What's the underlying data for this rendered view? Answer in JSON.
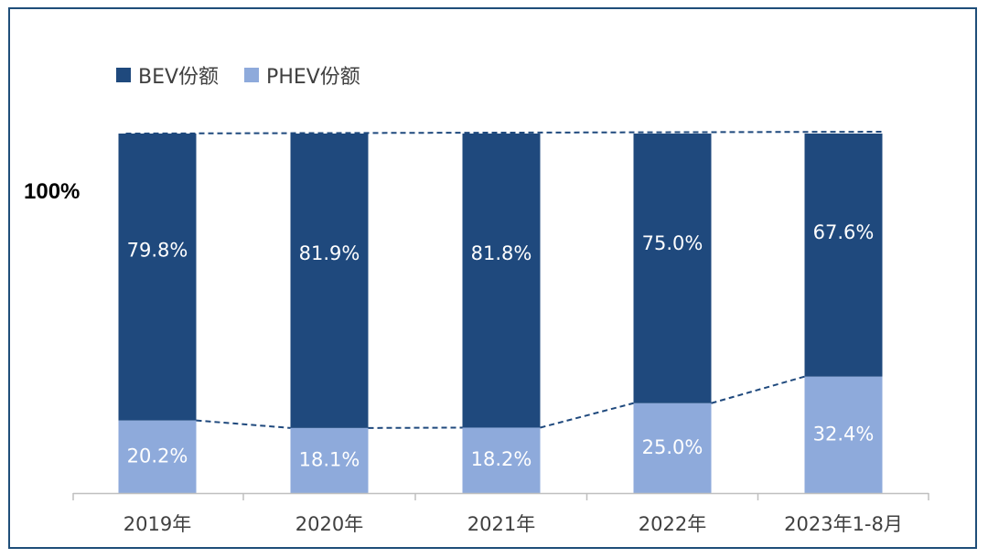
{
  "chart_data": {
    "type": "bar",
    "stacked": true,
    "percent": true,
    "categories": [
      "2019年",
      "2020年",
      "2021年",
      "2022年",
      "2023年1-8月"
    ],
    "series": [
      {
        "name": "BEV份额",
        "values": [
          79.8,
          81.9,
          81.8,
          75.0,
          67.6
        ],
        "labels": [
          "79.8%",
          "81.9%",
          "81.8%",
          "75.0%",
          "67.6%"
        ],
        "color": "#1f497d"
      },
      {
        "name": "PHEV份额",
        "values": [
          20.2,
          18.1,
          18.2,
          25.0,
          32.4
        ],
        "labels": [
          "20.2%",
          "18.1%",
          "18.2%",
          "25.0%",
          "32.4%"
        ],
        "color": "#8eaadb"
      }
    ],
    "y_label_top": "100%",
    "ylim": [
      0,
      100
    ],
    "connector_lines": "dashed",
    "legend_position": "top-left"
  },
  "colors": {
    "frame": "#1f4e79",
    "axis": "#bfbfbf",
    "dash": "#1f497d"
  }
}
